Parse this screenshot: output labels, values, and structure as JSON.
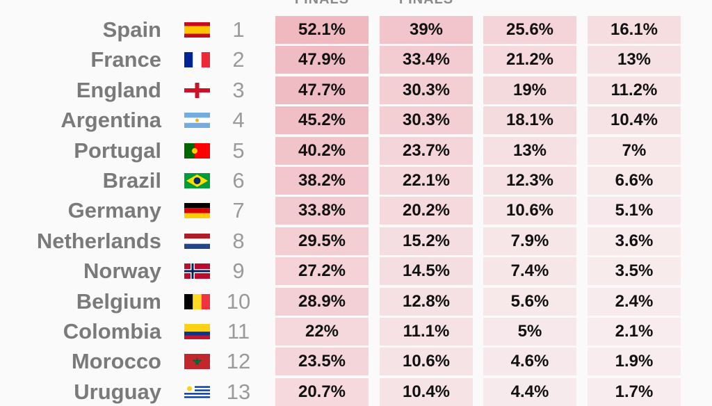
{
  "table": {
    "header": [
      "FINALS",
      "FINALS"
    ],
    "rows": [
      [
        "Spain",
        "1",
        "52.1%",
        "39%",
        "25.6%",
        "16.1%"
      ],
      [
        "France",
        "2",
        "47.9%",
        "33.4%",
        "21.2%",
        "13%"
      ],
      [
        "England",
        "3",
        "47.7%",
        "30.3%",
        "19%",
        "11.2%"
      ],
      [
        "Argentina",
        "4",
        "45.2%",
        "30.3%",
        "18.1%",
        "10.4%"
      ],
      [
        "Portugal",
        "5",
        "40.2%",
        "23.7%",
        "13%",
        "7%"
      ],
      [
        "Brazil",
        "6",
        "38.2%",
        "22.1%",
        "12.3%",
        "6.6%"
      ],
      [
        "Germany",
        "7",
        "33.8%",
        "20.2%",
        "10.6%",
        "5.1%"
      ],
      [
        "Netherlands",
        "8",
        "29.5%",
        "15.2%",
        "7.9%",
        "3.6%"
      ],
      [
        "Norway",
        "9",
        "27.2%",
        "14.5%",
        "7.4%",
        "3.5%"
      ],
      [
        "Belgium",
        "10",
        "28.9%",
        "12.8%",
        "5.6%",
        "2.4%"
      ],
      [
        "Colombia",
        "11",
        "22%",
        "11.1%",
        "5%",
        "2.1%"
      ],
      [
        "Morocco",
        "12",
        "23.5%",
        "10.6%",
        "4.6%",
        "1.9%"
      ],
      [
        "Uruguay",
        "13",
        "20.7%",
        "10.4%",
        "4.4%",
        "1.7%"
      ]
    ]
  }
}
